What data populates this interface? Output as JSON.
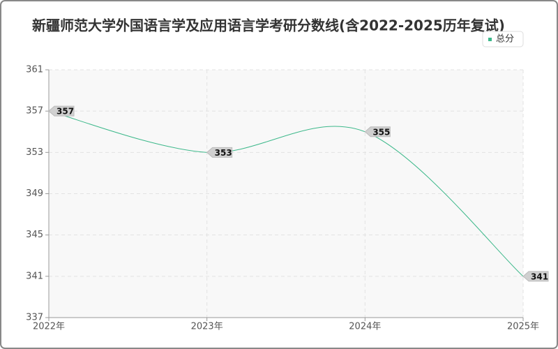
{
  "chart_data": {
    "type": "line",
    "title": "新疆师范大学外国语言学及应用语言学考研分数线(含2022-2025历年复试)",
    "categories": [
      "2022年",
      "2023年",
      "2024年",
      "2025年"
    ],
    "series": [
      {
        "name": "总分",
        "color": "#3cb88a",
        "values": [
          357,
          353,
          355,
          341
        ]
      }
    ],
    "ylim": [
      337,
      361
    ],
    "yticks": [
      337,
      341,
      345,
      349,
      353,
      357,
      361
    ],
    "grid": true,
    "legend": "top-right"
  }
}
